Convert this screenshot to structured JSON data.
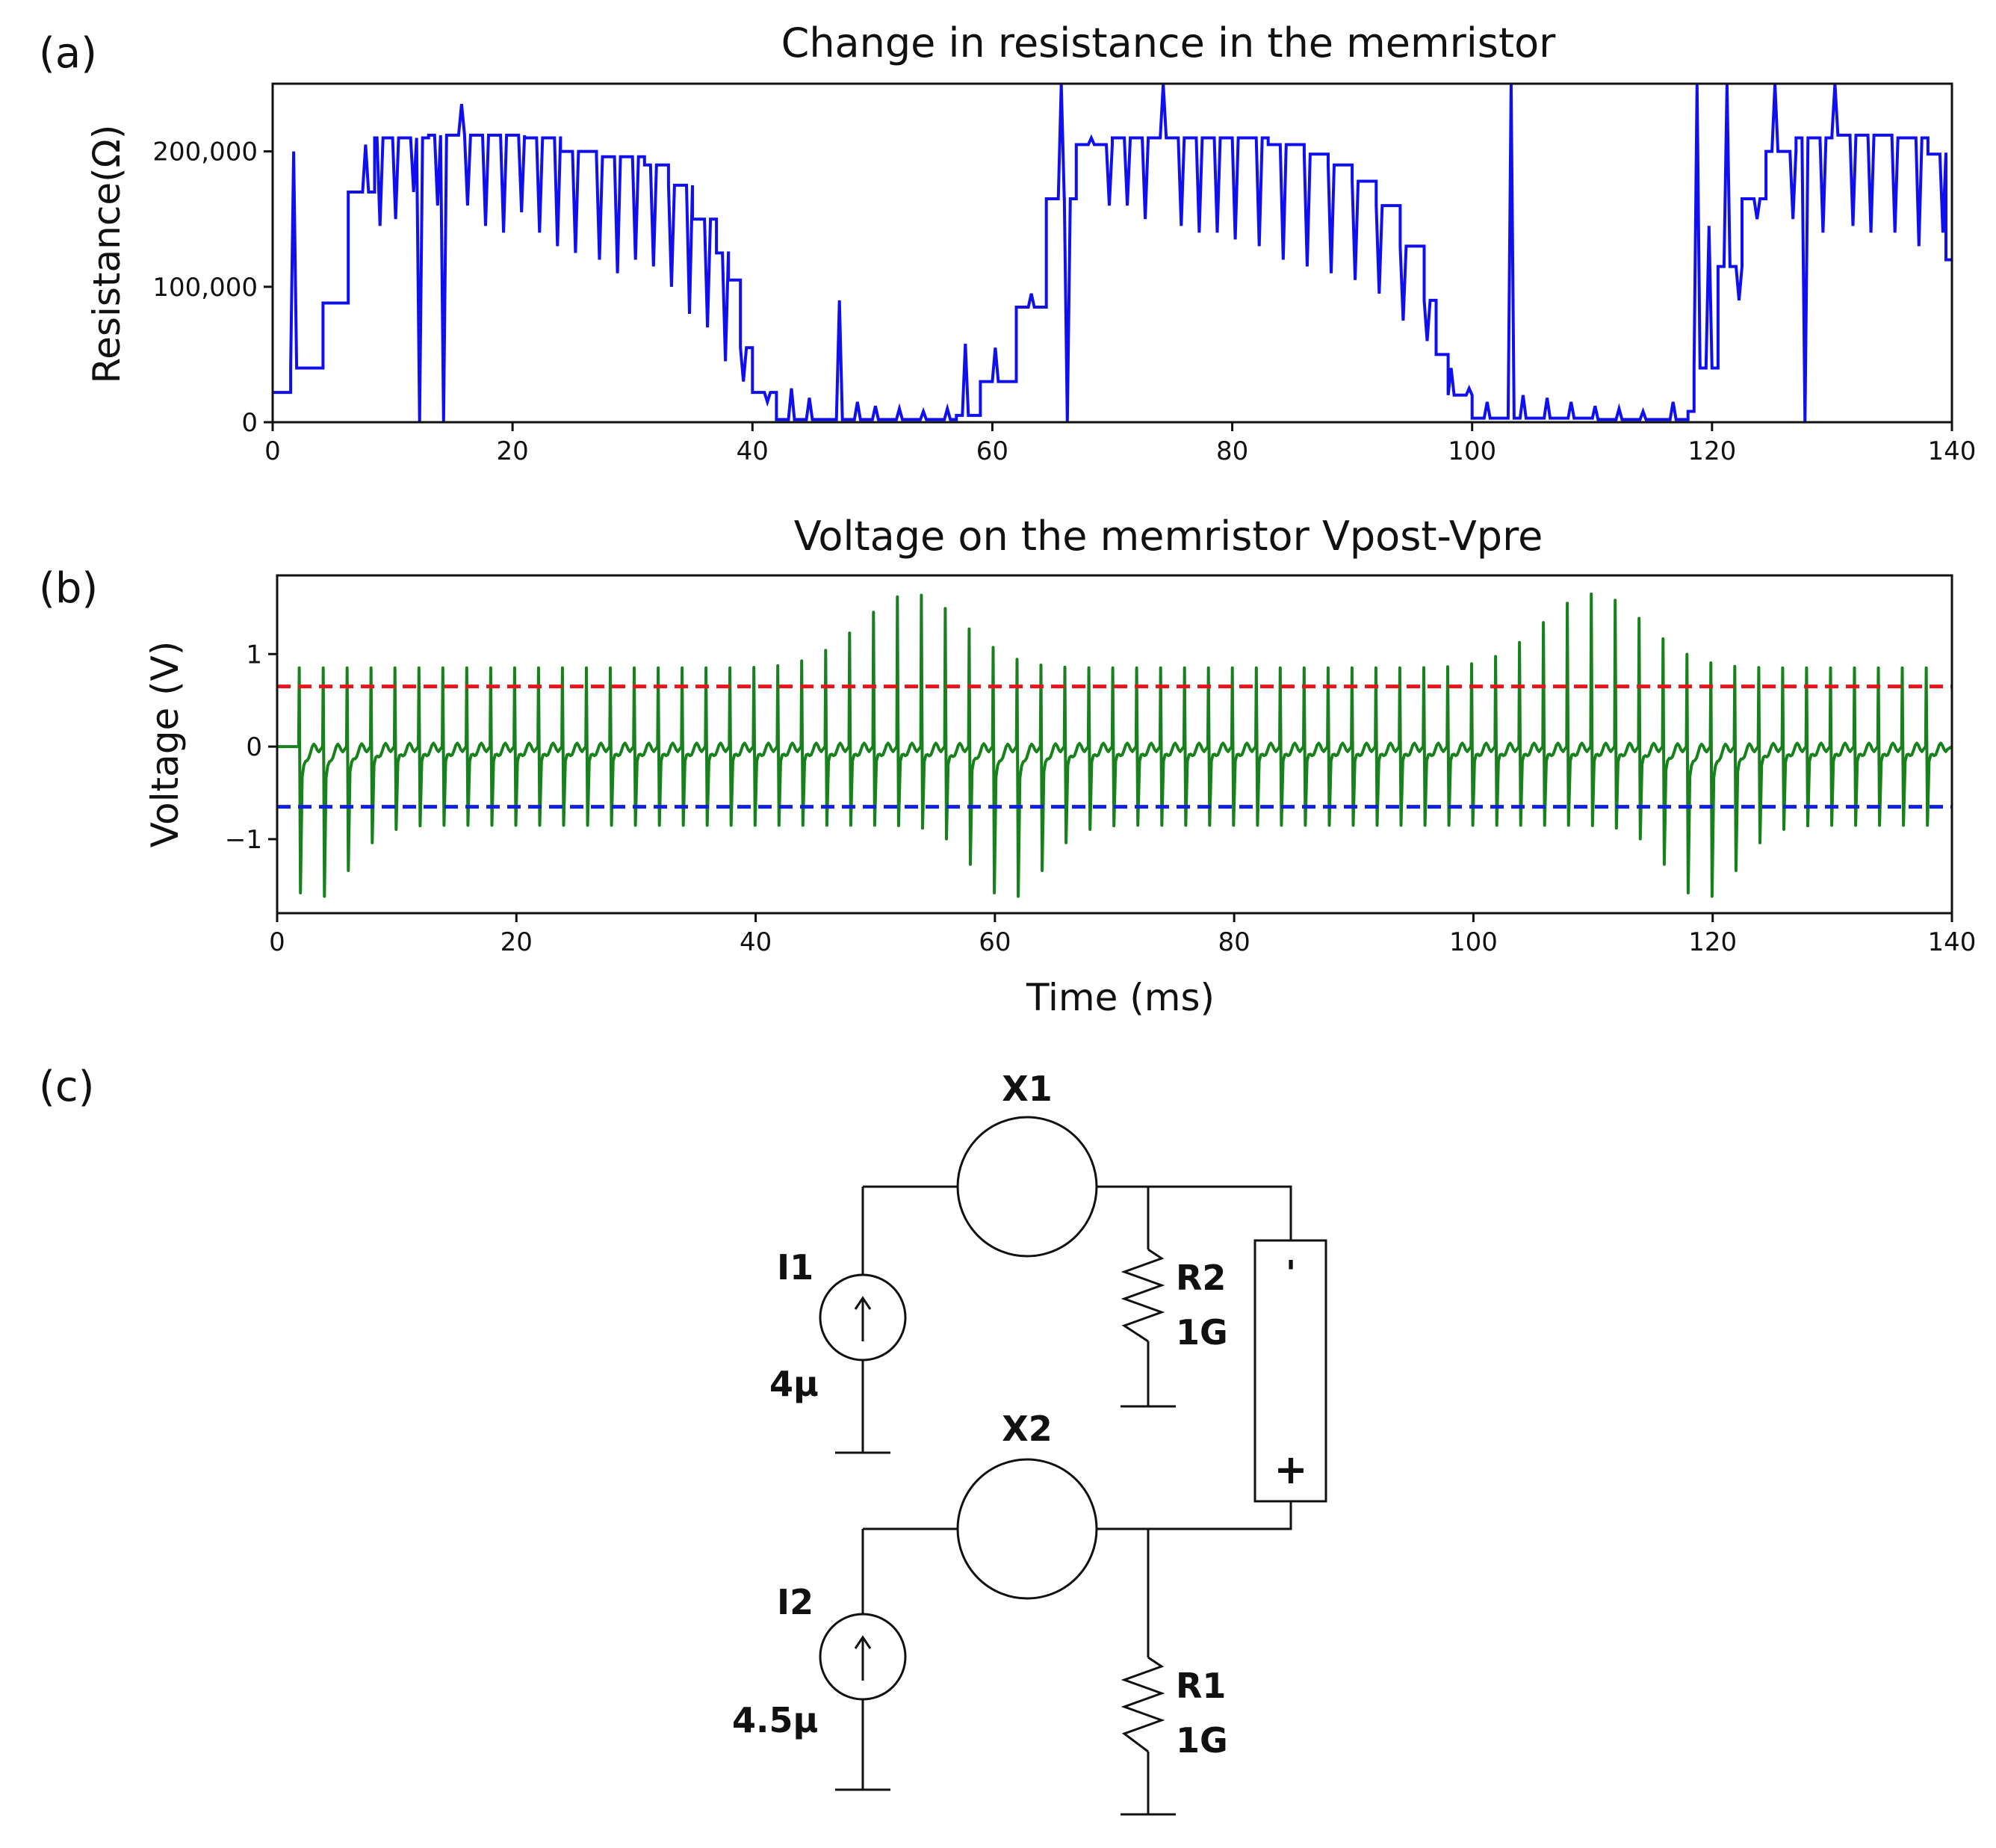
{
  "panel_labels": {
    "a": "(a)",
    "b": "(b)",
    "c": "(c)"
  },
  "chart_data": [
    {
      "type": "line",
      "title": "Change in resistance in the memristor",
      "xlabel": "",
      "ylabel": "Resistance(Ω)",
      "xlim": [
        0,
        140
      ],
      "ylim": [
        0,
        250000
      ],
      "x_ticks": [
        0,
        20,
        40,
        60,
        80,
        100,
        120,
        140
      ],
      "x_tick_labels": [
        "0",
        "20",
        "40",
        "60",
        "80",
        "100",
        "120",
        "140"
      ],
      "y_ticks": [
        0,
        100000,
        200000
      ],
      "y_tick_labels": [
        "0",
        "100,000",
        "200,000"
      ],
      "grid": false,
      "series": [
        {
          "name": "resistance",
          "color": "#1010ee",
          "steps": [
            [
              0,
              22000
            ],
            [
              1.5,
              40000
            ],
            [
              3.5,
              40000
            ],
            [
              4.2,
              88000
            ],
            [
              6,
              88000
            ],
            [
              6.3,
              170000
            ],
            [
              8,
              170000
            ],
            [
              8.5,
              210000
            ],
            [
              12,
              210000
            ],
            [
              13,
              212000
            ],
            [
              20,
              212000
            ],
            [
              21,
              210000
            ],
            [
              24,
              200000
            ],
            [
              27,
              196000
            ],
            [
              31,
              190000
            ],
            [
              33,
              175000
            ],
            [
              35,
              150000
            ],
            [
              37,
              125000
            ],
            [
              38,
              105000
            ],
            [
              39,
              55000
            ],
            [
              40,
              22000
            ],
            [
              42,
              2000
            ],
            [
              55,
              2000
            ],
            [
              57,
              5000
            ],
            [
              58,
              5000
            ],
            [
              59,
              30000
            ],
            [
              61.5,
              30000
            ],
            [
              62,
              85000
            ],
            [
              64,
              85000
            ],
            [
              64.5,
              165000
            ],
            [
              66,
              165000
            ],
            [
              67,
              205000
            ],
            [
              70,
              210000
            ],
            [
              80,
              210000
            ],
            [
              83,
              205000
            ],
            [
              86,
              198000
            ],
            [
              88,
              190000
            ],
            [
              90,
              178000
            ],
            [
              92,
              160000
            ],
            [
              94,
              130000
            ],
            [
              96,
              90000
            ],
            [
              97,
              50000
            ],
            [
              98,
              20000
            ],
            [
              100,
              3000
            ],
            [
              110,
              2000
            ],
            [
              116,
              2000
            ],
            [
              118,
              8000
            ],
            [
              118.5,
              40000
            ],
            [
              120,
              40000
            ],
            [
              120.5,
              115000
            ],
            [
              122,
              115000
            ],
            [
              122.5,
              165000
            ],
            [
              124,
              165000
            ],
            [
              124.5,
              200000
            ],
            [
              127,
              210000
            ],
            [
              130,
              212000
            ],
            [
              135,
              210000
            ],
            [
              138,
              198000
            ],
            [
              139.5,
              120000
            ],
            [
              140,
              120000
            ]
          ],
          "spikes": [
            [
              1.5,
              200000
            ],
            [
              7.5,
              205000
            ],
            [
              8.7,
              145000
            ],
            [
              10,
              150000
            ],
            [
              11.5,
              170000
            ],
            [
              12,
              0
            ],
            [
              13.5,
              160000
            ],
            [
              14,
              0
            ],
            [
              15.5,
              235000
            ],
            [
              16,
              160000
            ],
            [
              17.5,
              145000
            ],
            [
              19,
              140000
            ],
            [
              20.5,
              155000
            ],
            [
              22,
              140000
            ],
            [
              23.5,
              130000
            ],
            [
              25,
              125000
            ],
            [
              27,
              120000
            ],
            [
              28.5,
              110000
            ],
            [
              30,
              120000
            ],
            [
              31.5,
              115000
            ],
            [
              33,
              100000
            ],
            [
              34.5,
              80000
            ],
            [
              36,
              70000
            ],
            [
              37.5,
              45000
            ],
            [
              39,
              30000
            ],
            [
              41,
              15000
            ],
            [
              43,
              25000
            ],
            [
              44.5,
              18000
            ],
            [
              47,
              90000
            ],
            [
              48.5,
              15000
            ],
            [
              50,
              12000
            ],
            [
              52,
              10000
            ],
            [
              54,
              8000
            ],
            [
              56,
              10000
            ],
            [
              57.5,
              58000
            ],
            [
              60,
              55000
            ],
            [
              63,
              95000
            ],
            [
              65.5,
              250000
            ],
            [
              66,
              0
            ],
            [
              68,
              210000
            ],
            [
              69.5,
              160000
            ],
            [
              71,
              160000
            ],
            [
              72.5,
              150000
            ],
            [
              74,
              250000
            ],
            [
              75.5,
              145000
            ],
            [
              77,
              140000
            ],
            [
              78.5,
              140000
            ],
            [
              80,
              135000
            ],
            [
              82,
              130000
            ],
            [
              84,
              120000
            ],
            [
              86,
              115000
            ],
            [
              88,
              110000
            ],
            [
              90,
              105000
            ],
            [
              92,
              95000
            ],
            [
              94,
              75000
            ],
            [
              96,
              60000
            ],
            [
              98,
              40000
            ],
            [
              99.5,
              25000
            ],
            [
              101,
              15000
            ],
            [
              103,
              250000
            ],
            [
              104,
              20000
            ],
            [
              106,
              18000
            ],
            [
              108,
              15000
            ],
            [
              110,
              12000
            ],
            [
              112,
              10000
            ],
            [
              114,
              8000
            ],
            [
              116.5,
              15000
            ],
            [
              118.5,
              250000
            ],
            [
              119.5,
              145000
            ],
            [
              121,
              250000
            ],
            [
              122,
              90000
            ],
            [
              123.5,
              150000
            ],
            [
              125,
              250000
            ],
            [
              126.5,
              150000
            ],
            [
              127.5,
              0
            ],
            [
              129,
              140000
            ],
            [
              130,
              250000
            ],
            [
              131.5,
              145000
            ],
            [
              133,
              140000
            ],
            [
              135,
              140000
            ],
            [
              137,
              130000
            ],
            [
              139,
              140000
            ]
          ]
        }
      ]
    },
    {
      "type": "line",
      "title": "Voltage on the memristor Vpost-Vpre",
      "xlabel": "Time (ms)",
      "ylabel": "Voltage (V)",
      "xlim": [
        0,
        140
      ],
      "ylim": [
        -1.8,
        1.85
      ],
      "x_ticks": [
        0,
        20,
        40,
        60,
        80,
        100,
        120,
        140
      ],
      "x_tick_labels": [
        "0",
        "20",
        "40",
        "60",
        "80",
        "100",
        "120",
        "140"
      ],
      "y_ticks": [
        -1,
        0,
        1
      ],
      "y_tick_labels": [
        "−1",
        "0",
        "1"
      ],
      "grid": false,
      "series": [
        {
          "name": "Vpost-Vpre",
          "color": "#17811b",
          "spike_period_ms": 2.0,
          "spike_count": 69,
          "first_spike_ms": 1.8,
          "positive_peak_range": [
            0.85,
            1.65
          ],
          "negative_peak_range": [
            -0.85,
            -1.65
          ],
          "baseline": 0
        },
        {
          "name": "positive threshold",
          "color": "#e8141c",
          "style": "dashed",
          "y": 0.65
        },
        {
          "name": "negative threshold",
          "color": "#1020dd",
          "style": "dashed",
          "y": -0.65
        }
      ]
    }
  ],
  "circuit": {
    "labels": {
      "x1": "X1",
      "x2": "X2",
      "i1": "I1",
      "i1_value": "4μ",
      "i2": "I2",
      "i2_value": "4.5μ",
      "r2": "R2",
      "r2_value": "1G",
      "r1": "R1",
      "r1_value": "1G",
      "source_minus": "'",
      "source_plus": "+"
    }
  }
}
